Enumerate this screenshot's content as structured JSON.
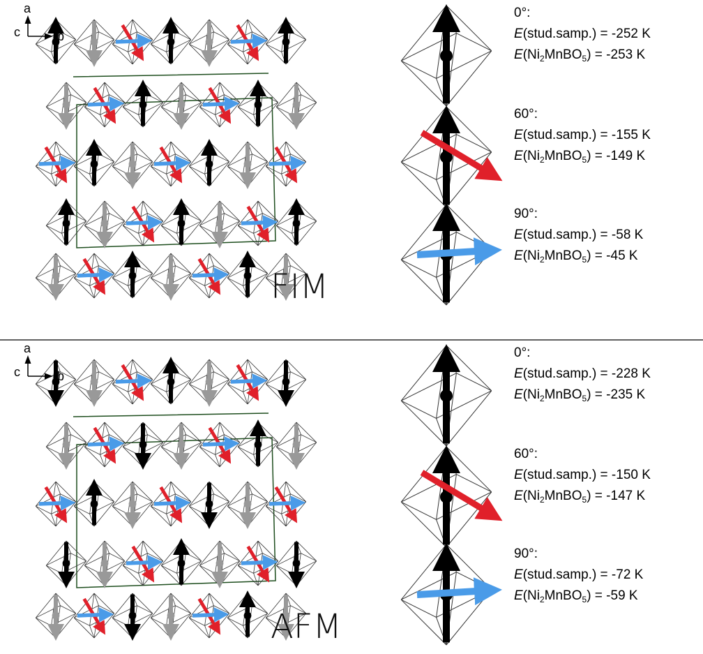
{
  "panels": [
    {
      "label": "FIM",
      "axes": [
        "a",
        "c",
        "b"
      ],
      "entries": [
        {
          "angle": "0°:",
          "stud": [
            "E",
            "(stud.samp.) = -252 K"
          ],
          "ni": [
            "E",
            "(Ni",
            "2",
            "MnBO",
            "5",
            ") = -253 K"
          ]
        },
        {
          "angle": "60°:",
          "stud": [
            "E",
            "(stud.samp.) = -155 K"
          ],
          "ni": [
            "E",
            "(Ni",
            "2",
            "MnBO",
            "5",
            ") = -149 K"
          ]
        },
        {
          "angle": "90°:",
          "stud": [
            "E",
            "(stud.samp.) = -58 K"
          ],
          "ni": [
            "E",
            "(Ni",
            "2",
            "MnBO",
            "5",
            ") = -45 K"
          ]
        }
      ]
    },
    {
      "label": "AFM",
      "axes": [
        "a",
        "c",
        "b"
      ],
      "entries": [
        {
          "angle": "0°:",
          "stud": [
            "E",
            "(stud.samp.) = -228 K"
          ],
          "ni": [
            "E",
            "(Ni",
            "2",
            "MnBO",
            "5",
            ") = -235 K"
          ]
        },
        {
          "angle": "60°:",
          "stud": [
            "E",
            "(stud.samp.) = -150 K"
          ],
          "ni": [
            "E",
            "(Ni",
            "2",
            "MnBO",
            "5",
            ") = -147 K"
          ]
        },
        {
          "angle": "90°:",
          "stud": [
            "E",
            "(stud.samp.) = -72 K"
          ],
          "ni": [
            "E",
            "(Ni",
            "2",
            "MnBO",
            "5",
            ") = -59 K"
          ]
        }
      ]
    }
  ]
}
